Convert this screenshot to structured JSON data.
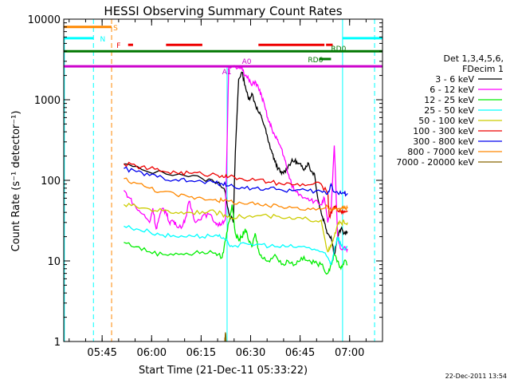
{
  "chart_data": {
    "type": "line",
    "title": "HESSI Observing Summary Count Rates",
    "xlabel": "Start Time (21-Dec-11 05:33:22)",
    "ylabel": "Count Rate (s⁻¹ detector⁻¹)",
    "yscale": "log",
    "ylim": [
      1,
      10000
    ],
    "xlim_minutes": [
      0,
      96.6
    ],
    "x_unit": "minutes after 05:33:22",
    "x_ticks": [
      {
        "label": "05:45",
        "value": 11.63
      },
      {
        "label": "06:00",
        "value": 26.63
      },
      {
        "label": "06:15",
        "value": 41.63
      },
      {
        "label": "06:30",
        "value": 56.63
      },
      {
        "label": "06:45",
        "value": 71.63
      },
      {
        "label": "07:00",
        "value": 86.63
      }
    ],
    "y_ticks": [
      {
        "label": "1",
        "value": 1
      },
      {
        "label": "10",
        "value": 10
      },
      {
        "label": "100",
        "value": 100
      },
      {
        "label": "1000",
        "value": 1000
      },
      {
        "label": "10000",
        "value": 10000
      }
    ],
    "legend": {
      "placement": "right",
      "header": [
        "Det 1,3,4,5,6,",
        "FDecim 1"
      ],
      "entries": [
        {
          "label": "3 - 6 keV",
          "color": "#000000"
        },
        {
          "label": "6 - 12 keV",
          "color": "#ff00ff"
        },
        {
          "label": "12 - 25 keV",
          "color": "#00ee00"
        },
        {
          "label": "25 - 50 keV",
          "color": "#00ffff"
        },
        {
          "label": "50 - 100 keV",
          "color": "#cccc00"
        },
        {
          "label": "100 - 300 keV",
          "color": "#ee0000"
        },
        {
          "label": "300 - 800 keV",
          "color": "#0000ee"
        },
        {
          "label": "800 - 7000 keV",
          "color": "#ff8800"
        },
        {
          "label": "7000 - 20000 keV",
          "color": "#886600"
        }
      ]
    },
    "series": [
      {
        "name": "3 - 6 keV",
        "color": "#000000",
        "points": [
          [
            18.2,
            160
          ],
          [
            25,
            130
          ],
          [
            35,
            120
          ],
          [
            42,
            105
          ],
          [
            47,
            95
          ],
          [
            49,
            70
          ],
          [
            50,
            40
          ],
          [
            51.4,
            30
          ],
          [
            52,
            220
          ],
          [
            53,
            1800
          ],
          [
            54,
            2200
          ],
          [
            55,
            1500
          ],
          [
            56,
            1000
          ],
          [
            57,
            1200
          ],
          [
            58,
            900
          ],
          [
            59,
            700
          ],
          [
            60,
            600
          ],
          [
            61,
            450
          ],
          [
            62,
            300
          ],
          [
            63,
            230
          ],
          [
            64,
            170
          ],
          [
            65,
            140
          ],
          [
            66,
            120
          ],
          [
            67,
            130
          ],
          [
            68,
            150
          ],
          [
            69,
            170
          ],
          [
            70,
            175
          ],
          [
            71,
            160
          ],
          [
            72,
            150
          ],
          [
            73,
            140
          ],
          [
            74,
            165
          ],
          [
            75,
            130
          ],
          [
            76,
            120
          ],
          [
            77,
            60
          ],
          [
            78,
            40
          ],
          [
            79,
            30
          ],
          [
            80,
            22
          ],
          [
            81,
            20
          ],
          [
            82,
            12
          ],
          [
            83,
            20
          ],
          [
            84,
            25
          ],
          [
            85,
            22
          ],
          [
            86,
            23
          ]
        ]
      },
      {
        "name": "6 - 12 keV",
        "color": "#ff00ff",
        "points": [
          [
            18.2,
            75
          ],
          [
            20,
            60
          ],
          [
            22,
            45
          ],
          [
            24,
            38
          ],
          [
            26,
            30
          ],
          [
            27,
            45
          ],
          [
            28,
            25
          ],
          [
            29,
            35
          ],
          [
            30,
            45
          ],
          [
            31,
            40
          ],
          [
            32,
            30
          ],
          [
            33,
            32
          ],
          [
            34,
            28
          ],
          [
            36,
            27
          ],
          [
            37,
            35
          ],
          [
            38,
            55
          ],
          [
            39,
            40
          ],
          [
            40,
            30
          ],
          [
            42,
            36
          ],
          [
            44,
            38
          ],
          [
            46,
            30
          ],
          [
            47,
            28
          ],
          [
            48,
            30
          ],
          [
            49,
            33
          ],
          [
            50,
            2500
          ],
          [
            53,
            2500
          ],
          [
            54,
            2600
          ],
          [
            55,
            2000
          ],
          [
            56,
            1800
          ],
          [
            57,
            1500
          ],
          [
            58,
            1700
          ],
          [
            59,
            1400
          ],
          [
            60,
            1100
          ],
          [
            61,
            800
          ],
          [
            62,
            550
          ],
          [
            63,
            450
          ],
          [
            64,
            350
          ],
          [
            65,
            300
          ],
          [
            66,
            250
          ],
          [
            67,
            180
          ],
          [
            68,
            120
          ],
          [
            69,
            90
          ],
          [
            70,
            75
          ],
          [
            72,
            65
          ],
          [
            74,
            60
          ],
          [
            76,
            55
          ],
          [
            78,
            50
          ],
          [
            79,
            60
          ],
          [
            80,
            30
          ],
          [
            81,
            40
          ],
          [
            82,
            270
          ],
          [
            83,
            20
          ],
          [
            84,
            14
          ],
          [
            85,
            15
          ],
          [
            86,
            14
          ]
        ]
      },
      {
        "name": "12 - 25 keV",
        "color": "#00ee00",
        "points": [
          [
            18.2,
            17
          ],
          [
            22,
            15
          ],
          [
            26,
            13
          ],
          [
            30,
            12
          ],
          [
            34,
            12.5
          ],
          [
            38,
            12
          ],
          [
            42,
            13
          ],
          [
            46,
            12.5
          ],
          [
            48,
            11
          ],
          [
            49,
            18
          ],
          [
            50,
            30
          ],
          [
            51,
            50
          ],
          [
            52,
            22
          ],
          [
            53,
            18
          ],
          [
            54,
            20
          ],
          [
            55,
            25
          ],
          [
            56,
            18
          ],
          [
            57,
            15
          ],
          [
            58,
            22
          ],
          [
            59,
            14
          ],
          [
            60,
            11
          ],
          [
            62,
            10
          ],
          [
            64,
            12
          ],
          [
            66,
            9
          ],
          [
            68,
            10
          ],
          [
            70,
            9
          ],
          [
            72,
            11
          ],
          [
            74,
            10
          ],
          [
            76,
            9.5
          ],
          [
            78,
            9
          ],
          [
            80,
            7
          ],
          [
            81,
            9
          ],
          [
            82,
            12
          ],
          [
            83,
            10
          ],
          [
            84,
            8
          ],
          [
            85,
            10
          ],
          [
            86,
            9
          ]
        ]
      },
      {
        "name": "25 - 50 keV",
        "color": "#00ffff",
        "points": [
          [
            18.2,
            27
          ],
          [
            22,
            25
          ],
          [
            26,
            23
          ],
          [
            30,
            21
          ],
          [
            34,
            20
          ],
          [
            38,
            21
          ],
          [
            42,
            20
          ],
          [
            46,
            21
          ],
          [
            48,
            19
          ],
          [
            50,
            16
          ],
          [
            52,
            15.5
          ],
          [
            56,
            16
          ],
          [
            60,
            16
          ],
          [
            64,
            15
          ],
          [
            68,
            15
          ],
          [
            72,
            15
          ],
          [
            76,
            14
          ],
          [
            78,
            13
          ],
          [
            80,
            11
          ],
          [
            81,
            9
          ],
          [
            82,
            14
          ],
          [
            83,
            20
          ],
          [
            84,
            16
          ],
          [
            85,
            14
          ],
          [
            86,
            15
          ]
        ]
      },
      {
        "name": "50 - 100 keV",
        "color": "#cccc00",
        "points": [
          [
            18.2,
            50
          ],
          [
            22,
            47
          ],
          [
            26,
            44
          ],
          [
            30,
            42
          ],
          [
            34,
            40
          ],
          [
            38,
            40
          ],
          [
            42,
            41
          ],
          [
            46,
            40
          ],
          [
            48,
            38
          ],
          [
            50,
            36
          ],
          [
            54,
            35
          ],
          [
            58,
            36
          ],
          [
            62,
            36
          ],
          [
            66,
            34
          ],
          [
            70,
            33
          ],
          [
            74,
            33
          ],
          [
            78,
            32
          ],
          [
            80,
            13
          ],
          [
            81,
            15
          ],
          [
            82,
            20
          ],
          [
            83,
            28
          ],
          [
            84,
            30
          ],
          [
            85,
            30
          ],
          [
            86,
            30
          ]
        ]
      },
      {
        "name": "100 - 300 keV",
        "color": "#ee0000",
        "points": [
          [
            18.2,
            160
          ],
          [
            22,
            150
          ],
          [
            26,
            140
          ],
          [
            30,
            130
          ],
          [
            34,
            125
          ],
          [
            38,
            123
          ],
          [
            42,
            120
          ],
          [
            46,
            118
          ],
          [
            48,
            115
          ],
          [
            50,
            110
          ],
          [
            54,
            105
          ],
          [
            58,
            100
          ],
          [
            62,
            95
          ],
          [
            66,
            90
          ],
          [
            70,
            88
          ],
          [
            74,
            88
          ],
          [
            78,
            90
          ],
          [
            80,
            68
          ],
          [
            80.5,
            35
          ],
          [
            81,
            40
          ],
          [
            82,
            48
          ],
          [
            83,
            42
          ],
          [
            84,
            42
          ],
          [
            85,
            40
          ],
          [
            86,
            42
          ]
        ]
      },
      {
        "name": "300 - 800 keV",
        "color": "#0000ee",
        "points": [
          [
            18.2,
            140
          ],
          [
            22,
            128
          ],
          [
            26,
            115
          ],
          [
            30,
            108
          ],
          [
            34,
            102
          ],
          [
            38,
            98
          ],
          [
            42,
            96
          ],
          [
            46,
            94
          ],
          [
            48,
            90
          ],
          [
            50,
            85
          ],
          [
            54,
            82
          ],
          [
            58,
            80
          ],
          [
            62,
            78
          ],
          [
            66,
            76
          ],
          [
            70,
            75
          ],
          [
            74,
            74
          ],
          [
            78,
            73
          ],
          [
            80,
            68
          ],
          [
            81,
            90
          ],
          [
            82,
            72
          ],
          [
            83,
            70
          ],
          [
            84,
            69
          ],
          [
            85,
            69
          ],
          [
            86,
            69
          ]
        ]
      },
      {
        "name": "800 - 7000 keV",
        "color": "#ff8800",
        "points": [
          [
            18.2,
            105
          ],
          [
            22,
            92
          ],
          [
            26,
            80
          ],
          [
            30,
            72
          ],
          [
            34,
            66
          ],
          [
            38,
            62
          ],
          [
            42,
            60
          ],
          [
            46,
            58
          ],
          [
            48,
            56
          ],
          [
            50,
            55
          ],
          [
            54,
            52
          ],
          [
            58,
            50
          ],
          [
            62,
            48
          ],
          [
            66,
            47
          ],
          [
            70,
            46
          ],
          [
            74,
            45
          ],
          [
            78,
            44
          ],
          [
            80,
            47
          ],
          [
            81,
            42
          ],
          [
            82,
            44
          ],
          [
            83,
            44
          ],
          [
            84,
            45
          ],
          [
            85,
            45
          ],
          [
            86,
            45
          ]
        ]
      },
      {
        "name": "7000 - 20000 keV",
        "color": "#886600",
        "points": [
          [
            48.8,
            1
          ],
          [
            49,
            1.3
          ],
          [
            49.2,
            1
          ]
        ]
      }
    ],
    "flags": [
      {
        "label": "S",
        "color": "#ff8800",
        "y": 8000,
        "segments": [
          [
            0,
            14.5
          ]
        ]
      },
      {
        "label": "N",
        "color": "#00ffff",
        "y": 5800,
        "segments": [
          [
            0,
            9
          ],
          [
            84.5,
            96.6
          ]
        ]
      },
      {
        "label": "F",
        "color": "#ee0000",
        "y": 4800,
        "segments": [
          [
            19.5,
            21
          ],
          [
            31,
            42
          ],
          [
            59,
            79
          ],
          [
            79.5,
            81.5
          ]
        ]
      },
      {
        "label": "",
        "color": "#007700",
        "y": 4000,
        "segments": [
          [
            0,
            96.6
          ]
        ]
      },
      {
        "label": "RD0",
        "color": "#007700",
        "y": 4000,
        "segments": []
      },
      {
        "label": "RD6",
        "color": "#007700",
        "y": 3200,
        "segments": [
          [
            77.5,
            81
          ]
        ]
      },
      {
        "label": "A1",
        "color": "#cc00cc",
        "y": 2600,
        "segments": [
          [
            0,
            96.6
          ]
        ]
      },
      {
        "label": "A0",
        "color": "#cc00cc",
        "y": 2600,
        "segments": []
      }
    ],
    "vlines": [
      {
        "x": 0.2,
        "color": "#00ffff",
        "style": "solid",
        "ymin": 1,
        "ymax": 5800
      },
      {
        "x": 9.0,
        "color": "#00ffff",
        "style": "dashed"
      },
      {
        "x": 14.5,
        "color": "#ff8800",
        "style": "dashed"
      },
      {
        "x": 49.5,
        "color": "#00ffff",
        "style": "solid",
        "ymin": 1,
        "ymax": 2600
      },
      {
        "x": 84.5,
        "color": "#00ffff",
        "style": "solid"
      },
      {
        "x": 94.2,
        "color": "#00ffff",
        "style": "dashed"
      }
    ]
  },
  "timestamp": "22-Dec-2011 13:54"
}
